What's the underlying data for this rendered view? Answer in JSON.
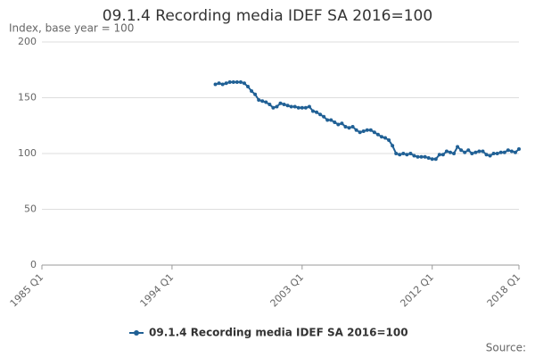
{
  "chart_data": {
    "type": "line",
    "title": "09.1.4 Recording media IDEF SA 2016=100",
    "subtitle": "Index, base year = 100",
    "source": "Source:",
    "categories": [
      "1985 Q1",
      null,
      null,
      null,
      null,
      null,
      null,
      null,
      null,
      null,
      null,
      null,
      null,
      null,
      null,
      null,
      null,
      null,
      null,
      null,
      null,
      null,
      null,
      null,
      null,
      null,
      null,
      null,
      null,
      null,
      null,
      null,
      null,
      null,
      null,
      null,
      "1994 Q1",
      null,
      null,
      null,
      null,
      null,
      null,
      null,
      null,
      null,
      null,
      null,
      null,
      null,
      null,
      null,
      null,
      null,
      null,
      null,
      null,
      null,
      null,
      null,
      null,
      null,
      null,
      null,
      null,
      null,
      null,
      null,
      null,
      null,
      null,
      null,
      "2003 Q1",
      null,
      null,
      null,
      null,
      null,
      null,
      null,
      null,
      null,
      null,
      null,
      null,
      null,
      null,
      null,
      null,
      null,
      null,
      null,
      null,
      null,
      null,
      null,
      null,
      null,
      null,
      null,
      null,
      null,
      null,
      null,
      null,
      null,
      null,
      null,
      "2012 Q1",
      null,
      null,
      null,
      null,
      null,
      null,
      null,
      null,
      null,
      null,
      null,
      null,
      null,
      null,
      null,
      null,
      null,
      null,
      null,
      null,
      null,
      null,
      null,
      "2018 Q1"
    ],
    "series": [
      {
        "name": "09.1.4 Recording media IDEF SA 2016=100",
        "color": "#206095",
        "values": [
          null,
          null,
          null,
          null,
          null,
          null,
          null,
          null,
          null,
          null,
          null,
          null,
          null,
          null,
          null,
          null,
          null,
          null,
          null,
          null,
          null,
          null,
          null,
          null,
          null,
          null,
          null,
          null,
          null,
          null,
          null,
          null,
          null,
          null,
          null,
          null,
          null,
          null,
          null,
          null,
          null,
          null,
          null,
          null,
          null,
          null,
          null,
          null,
          162,
          163,
          162,
          163,
          164,
          164,
          164,
          164,
          163,
          160,
          156,
          153,
          148,
          147,
          146,
          144,
          141,
          142,
          145,
          144,
          143,
          142,
          142,
          141,
          141,
          141,
          142,
          138,
          137,
          135,
          133,
          130,
          130,
          128,
          126,
          127,
          124,
          123,
          124,
          121,
          119,
          120,
          121,
          121,
          119,
          117,
          115,
          114,
          112,
          107,
          100,
          99,
          100,
          99,
          100,
          98,
          97,
          97,
          97,
          96,
          95,
          95,
          99,
          99,
          102,
          101,
          100,
          106,
          103,
          101,
          103,
          100,
          101,
          102,
          102,
          99,
          98,
          100,
          100,
          101,
          101,
          103,
          102,
          101,
          104
        ]
      }
    ],
    "ylim": [
      0,
      200
    ],
    "yticks": [
      0,
      50,
      100,
      150,
      200
    ],
    "grid": true
  }
}
